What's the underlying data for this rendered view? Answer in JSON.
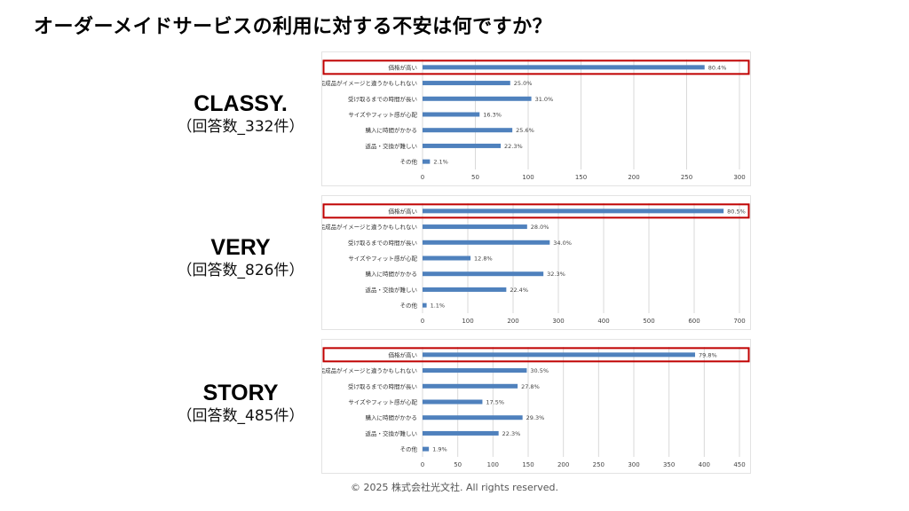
{
  "page": {
    "title": "オーダーメイドサービスの利用に対する不安は何ですか？",
    "copyright": "© 2025 株式会社光文社. All rights reserved."
  },
  "colors": {
    "bar": "#4f81bd",
    "highlight": "#c00000",
    "grid": "#d9d9d9"
  },
  "magazines": [
    {
      "name": "CLASSY.",
      "count": "（回答数_332件）"
    },
    {
      "name": "VERY",
      "count": "（回答数_826件）"
    },
    {
      "name": "STORY",
      "count": "（回答数_485件）"
    }
  ],
  "chart_data": [
    {
      "type": "bar",
      "orientation": "horizontal",
      "categories": [
        "価格が高い",
        "完成品がイメージと違うかもしれない",
        "受け取るまでの時間が長い",
        "サイズやフィット感が心配",
        "購入に時間がかかる",
        "返品・交換が難しい",
        "その他"
      ],
      "values": [
        267,
        83,
        103,
        54,
        85,
        74,
        7
      ],
      "data_labels": [
        "80.4%",
        "25.0%",
        "31.0%",
        "16.3%",
        "25.6%",
        "22.3%",
        "2.1%"
      ],
      "xlim": [
        0,
        300
      ],
      "xticks": [
        "0",
        "50",
        "100",
        "150",
        "200",
        "250",
        "300"
      ],
      "highlighted_category": "価格が高い",
      "grid": true
    },
    {
      "type": "bar",
      "orientation": "horizontal",
      "categories": [
        "価格が高い",
        "完成品がイメージと違うかもしれない",
        "受け取るまでの時間が長い",
        "サイズやフィット感が心配",
        "購入に時間がかかる",
        "返品・交換が難しい",
        "その他"
      ],
      "values": [
        665,
        231,
        281,
        106,
        267,
        185,
        9
      ],
      "data_labels": [
        "80.5%",
        "28.0%",
        "34.0%",
        "12.8%",
        "32.3%",
        "22.4%",
        "1.1%"
      ],
      "xlim": [
        0,
        700
      ],
      "xticks": [
        "0",
        "100",
        "200",
        "300",
        "400",
        "500",
        "600",
        "700"
      ],
      "highlighted_category": "価格が高い",
      "grid": true
    },
    {
      "type": "bar",
      "orientation": "horizontal",
      "categories": [
        "価格が高い",
        "完成品がイメージと違うかもしれない",
        "受け取るまでの時間が長い",
        "サイズやフィット感が心配",
        "購入に時間がかかる",
        "返品・交換が難しい",
        "その他"
      ],
      "values": [
        387,
        148,
        135,
        85,
        142,
        108,
        9
      ],
      "data_labels": [
        "79.8%",
        "30.5%",
        "27.8%",
        "17.5%",
        "29.3%",
        "22.3%",
        "1.9%"
      ],
      "xlim": [
        0,
        450
      ],
      "xticks": [
        "0",
        "50",
        "100",
        "150",
        "200",
        "250",
        "300",
        "350",
        "400",
        "450"
      ],
      "highlighted_category": "価格が高い",
      "grid": true
    }
  ]
}
